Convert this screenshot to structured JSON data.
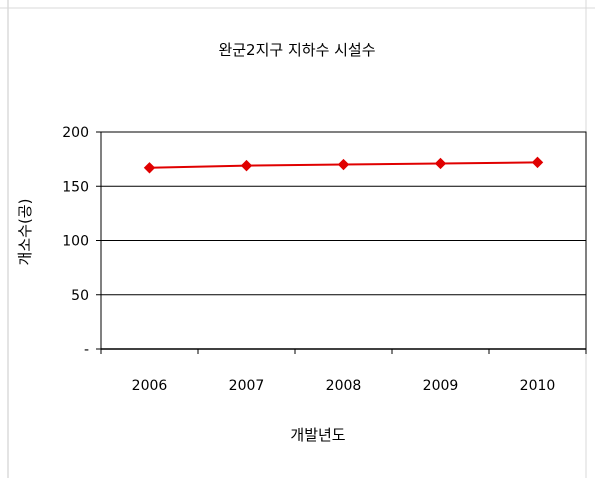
{
  "chart_data": {
    "type": "line",
    "title": "완군2지구 지하수 시설수",
    "xlabel": "개발년도",
    "ylabel": "개소수(공)",
    "categories": [
      "2006",
      "2007",
      "2008",
      "2009",
      "2010"
    ],
    "series": [
      {
        "values": [
          167,
          169,
          170,
          171,
          172
        ]
      }
    ],
    "ylim": [
      0,
      200
    ],
    "yticks": [
      {
        "value": 200,
        "label": "200"
      },
      {
        "value": 150,
        "label": "150"
      },
      {
        "value": 100,
        "label": "100"
      },
      {
        "value": 50,
        "label": "50"
      },
      {
        "value": 0,
        "label": "-"
      }
    ],
    "grid": true,
    "legend": "none",
    "colors": {
      "series": "#e00000",
      "grid": "#000000",
      "text": "#000000"
    },
    "marker": "diamond"
  }
}
